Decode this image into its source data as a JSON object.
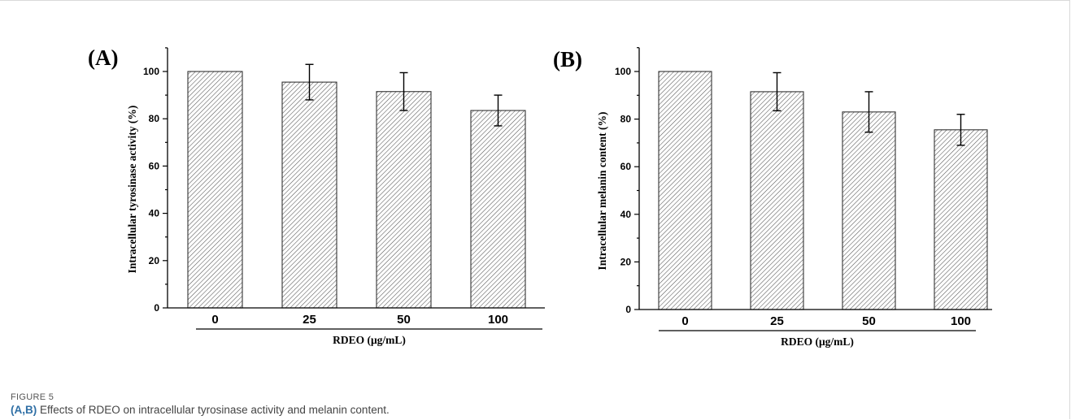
{
  "chart_data": [
    {
      "type": "bar",
      "panel": "(A)",
      "categories": [
        "0",
        "25",
        "50",
        "100"
      ],
      "values": [
        100,
        95.5,
        91.5,
        83.5
      ],
      "errors": [
        0,
        7.5,
        8,
        6.5
      ],
      "xlabel": "RDEO (μg/mL)",
      "ylabel": "Intracellular tyrosinase activity (%)",
      "ylim": [
        0,
        110
      ],
      "yticks": [
        "0",
        "20",
        "40",
        "60",
        "80",
        "100"
      ],
      "bar_fill": "hatched",
      "legend": "none",
      "grid": false
    },
    {
      "type": "bar",
      "panel": "(B)",
      "categories": [
        "0",
        "25",
        "50",
        "100"
      ],
      "values": [
        100,
        91.5,
        83,
        75.5
      ],
      "errors": [
        0,
        8,
        8.5,
        6.5
      ],
      "xlabel": "RDEO (μg/mL)",
      "ylabel": "Intracellular melanin content (%)",
      "ylim": [
        0,
        110
      ],
      "yticks": [
        "0",
        "20",
        "40",
        "60",
        "80",
        "100"
      ],
      "bar_fill": "hatched",
      "legend": "none",
      "grid": false
    }
  ],
  "caption": {
    "label": "FIGURE 5",
    "bold_part": "(A,B)",
    "text": " Effects of RDEO on intracellular tyrosinase activity and melanin content."
  },
  "colors": {
    "bar_outline": "#333333",
    "hatch": "#555555",
    "caption_bold": "#2f6fa5",
    "caption_text": "#444444"
  }
}
